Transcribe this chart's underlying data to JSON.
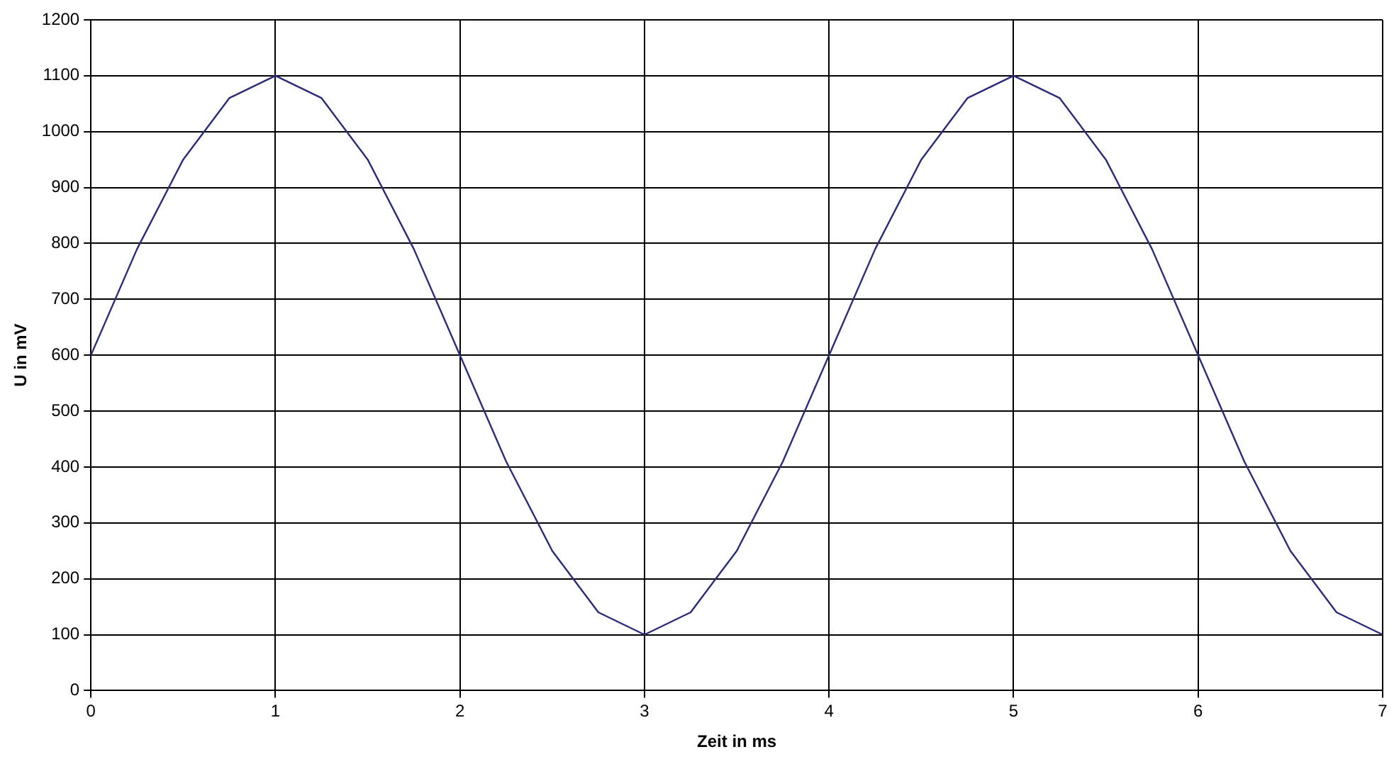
{
  "chart_data": {
    "type": "line",
    "xlabel": "Zeit in ms",
    "ylabel": "U in mV",
    "x": [
      0,
      0.25,
      0.5,
      0.75,
      1,
      1.25,
      1.5,
      1.75,
      2,
      2.25,
      2.5,
      2.75,
      3,
      3.25,
      3.5,
      3.75,
      4,
      4.25,
      4.5,
      4.75,
      5,
      5.25,
      5.5,
      5.75,
      6,
      6.25,
      6.5,
      6.75,
      7
    ],
    "series": [
      {
        "color": "#2b2b7a",
        "values": [
          600,
          790,
          950,
          1060,
          1100,
          1060,
          950,
          790,
          600,
          410,
          250,
          140,
          100,
          140,
          250,
          410,
          600,
          790,
          950,
          1060,
          1100,
          1060,
          950,
          790,
          600,
          410,
          250,
          140,
          100
        ]
      }
    ],
    "xlim": [
      0,
      7
    ],
    "xticks": [
      0,
      1,
      2,
      3,
      4,
      5,
      6,
      7
    ],
    "ylim": [
      0,
      1200
    ],
    "yticks": [
      0,
      100,
      200,
      300,
      400,
      500,
      600,
      700,
      800,
      900,
      1000,
      1100,
      1200
    ],
    "grid": true,
    "legend": false,
    "marker": "none",
    "line_style": "solid"
  }
}
